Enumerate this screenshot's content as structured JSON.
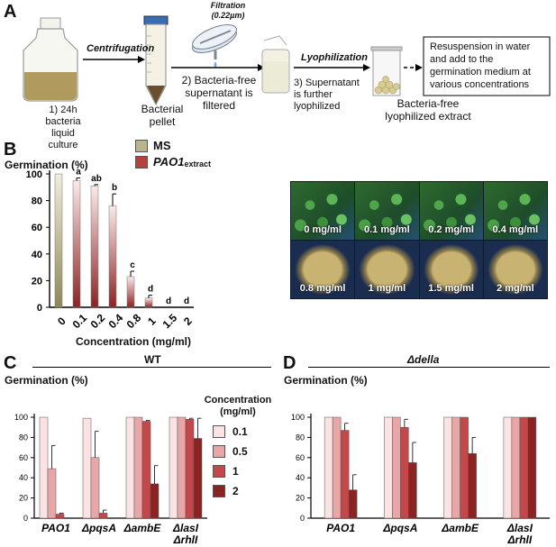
{
  "panels": {
    "A": "A",
    "B": "B",
    "C": "C",
    "D": "D"
  },
  "workflow": {
    "step1": "1) 24h\nbacteria\nliquid culture",
    "centrifugation": "Centrifugation",
    "pellet": "Bacterial\npellet",
    "filtration": "Filtration\n(0.22µm)",
    "step2": "2) Bacteria-free\nsupernatant is\nfiltered",
    "lyophilization": "Lyophilization",
    "step3": "3) Supernatant\nis further\nlyophilized",
    "extract": "Bacteria-free\nlyophilized extract",
    "box": "Resuspension in water\nand add to the\ngermination medium at\nvarious concentrations"
  },
  "panelB": {
    "legend": [
      {
        "label": "MS",
        "sub": "",
        "color": "#b9b48c"
      },
      {
        "label": "PAO1",
        "sub": "extract",
        "color": "#b5423e"
      }
    ],
    "photo_labels": [
      "0 mg/ml",
      "0.1 mg/ml",
      "0.2 mg/ml",
      "0.4 mg/ml",
      "0.8 mg/ml",
      "1 mg/ml",
      "1.5 mg/ml",
      "2 mg/ml"
    ]
  },
  "panelC": {
    "title": "WT"
  },
  "panelD": {
    "title": "Δdella"
  },
  "chart_data": [
    {
      "type": "bar",
      "ylabel": "Germination (%)",
      "xlabel": "Concentration (mg/ml)",
      "ylim": [
        0,
        100
      ],
      "yticks": [
        0,
        20,
        40,
        60,
        80,
        100
      ],
      "categories": [
        "0",
        "0.1",
        "0.2",
        "0.4",
        "0.8",
        "1",
        "1.5",
        "2"
      ],
      "values": [
        100,
        95,
        91,
        76,
        23,
        7,
        0,
        0
      ],
      "errors": [
        0,
        2,
        1,
        9,
        4,
        2,
        0,
        0
      ],
      "significance": [
        "",
        "a",
        "ab",
        "b",
        "c",
        "d",
        "d",
        "d"
      ]
    },
    {
      "type": "bar",
      "ylabel": "Germination (%)",
      "ylim": [
        0,
        100
      ],
      "yticks": [
        0,
        20,
        40,
        60,
        80,
        100
      ],
      "legend_title": "Concentration\n(mg/ml)",
      "categories": [
        "PAO1",
        "ΔpqsA",
        "ΔambE",
        "ΔlasI\nΔrhlI"
      ],
      "series": [
        {
          "name": "0.1",
          "color": "#fbe3e3",
          "values": [
            100,
            99,
            100,
            100
          ],
          "errors": [
            0,
            0,
            0,
            0
          ]
        },
        {
          "name": "0.5",
          "color": "#e8a6a6",
          "values": [
            49,
            60,
            100,
            100
          ],
          "errors": [
            23,
            26,
            0,
            0
          ]
        },
        {
          "name": "1",
          "color": "#c4474a",
          "values": [
            4,
            5,
            96,
            98
          ],
          "errors": [
            1,
            3,
            1,
            1
          ]
        },
        {
          "name": "2",
          "color": "#8c2323",
          "values": [
            0,
            0,
            34,
            79
          ],
          "errors": [
            0,
            0,
            18,
            20
          ]
        }
      ]
    },
    {
      "type": "bar",
      "ylabel": "Germination (%)",
      "ylim": [
        0,
        100
      ],
      "yticks": [
        0,
        20,
        40,
        60,
        80,
        100
      ],
      "categories": [
        "PAO1",
        "ΔpqsA",
        "ΔambE",
        "ΔlasI\nΔrhlI"
      ],
      "series": [
        {
          "name": "0.1",
          "color": "#fbe3e3",
          "values": [
            100,
            100,
            100,
            100
          ],
          "errors": [
            0,
            0,
            0,
            0
          ]
        },
        {
          "name": "0.5",
          "color": "#e8a6a6",
          "values": [
            100,
            100,
            100,
            100
          ],
          "errors": [
            0,
            0,
            0,
            0
          ]
        },
        {
          "name": "1",
          "color": "#c4474a",
          "values": [
            87,
            90,
            100,
            100
          ],
          "errors": [
            7,
            8,
            0,
            0
          ]
        },
        {
          "name": "2",
          "color": "#8c2323",
          "values": [
            28,
            55,
            64,
            100
          ],
          "errors": [
            15,
            20,
            16,
            0
          ]
        }
      ]
    }
  ]
}
